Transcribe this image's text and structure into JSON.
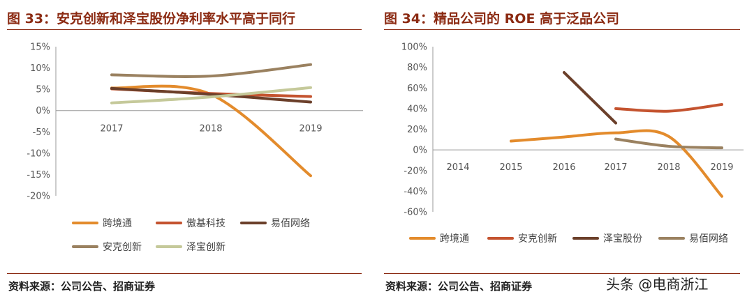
{
  "left": {
    "figure_title": "图 33：安克创新和泽宝股份净利率水平高于同行",
    "source": "资料来源：公司公告、招商证券"
  },
  "right": {
    "figure_title": "图 34：精品公司的 ROE 高于泛品公司",
    "source": "资料来源：公司公告、招商证券"
  },
  "watermark": "头条 @电商浙江",
  "chart_data": [
    {
      "type": "line",
      "title": "图 33：安克创新和泽宝股份净利率水平高于同行",
      "x": [
        "2017",
        "2018",
        "2019"
      ],
      "ylim": [
        -20,
        15
      ],
      "yticks": [
        15,
        10,
        5,
        0,
        -5,
        -10,
        -15,
        -20
      ],
      "ytick_labels": [
        "15%",
        "10%",
        "5%",
        "0%",
        "-5%",
        "-10%",
        "-15%",
        "-20%"
      ],
      "grid": false,
      "legend": "bottom",
      "series": [
        {
          "name": "跨境通",
          "color": "#e38b2c",
          "values": [
            5.3,
            3.8,
            -15.3
          ]
        },
        {
          "name": "傲基科技",
          "color": "#c4532f",
          "values": [
            5.1,
            4.0,
            3.3
          ]
        },
        {
          "name": "易佰网络",
          "color": "#6b3f2a",
          "values": [
            5.2,
            3.8,
            2.0
          ]
        },
        {
          "name": "安克创新",
          "color": "#9a8160",
          "values": [
            8.4,
            8.1,
            10.8
          ]
        },
        {
          "name": "泽宝创新",
          "color": "#c5c99a",
          "values": [
            1.8,
            3.2,
            5.4
          ]
        }
      ]
    },
    {
      "type": "line",
      "title": "图 34：精品公司的 ROE 高于泛品公司",
      "x": [
        "2014",
        "2015",
        "2016",
        "2017",
        "2018",
        "2019"
      ],
      "ylim": [
        -60,
        100
      ],
      "yticks": [
        100,
        80,
        60,
        40,
        20,
        0,
        -20,
        -40,
        -60
      ],
      "ytick_labels": [
        "100%",
        "80%",
        "60%",
        "40%",
        "20%",
        "0%",
        "-20%",
        "-40%",
        "-60%"
      ],
      "grid": false,
      "legend": "bottom",
      "series": [
        {
          "name": "跨境通",
          "color": "#e38b2c",
          "values": [
            null,
            8.5,
            12.5,
            16.5,
            13.0,
            -45.0
          ]
        },
        {
          "name": "安克创新",
          "color": "#c4532f",
          "values": [
            null,
            null,
            null,
            40.0,
            37.5,
            44.0
          ]
        },
        {
          "name": "泽宝股份",
          "color": "#6b3f2a",
          "values": [
            null,
            null,
            75.0,
            26.0,
            null,
            null
          ]
        },
        {
          "name": "易佰网络",
          "color": "#9a8160",
          "values": [
            null,
            null,
            null,
            10.5,
            3.5,
            2.0
          ]
        }
      ]
    }
  ]
}
